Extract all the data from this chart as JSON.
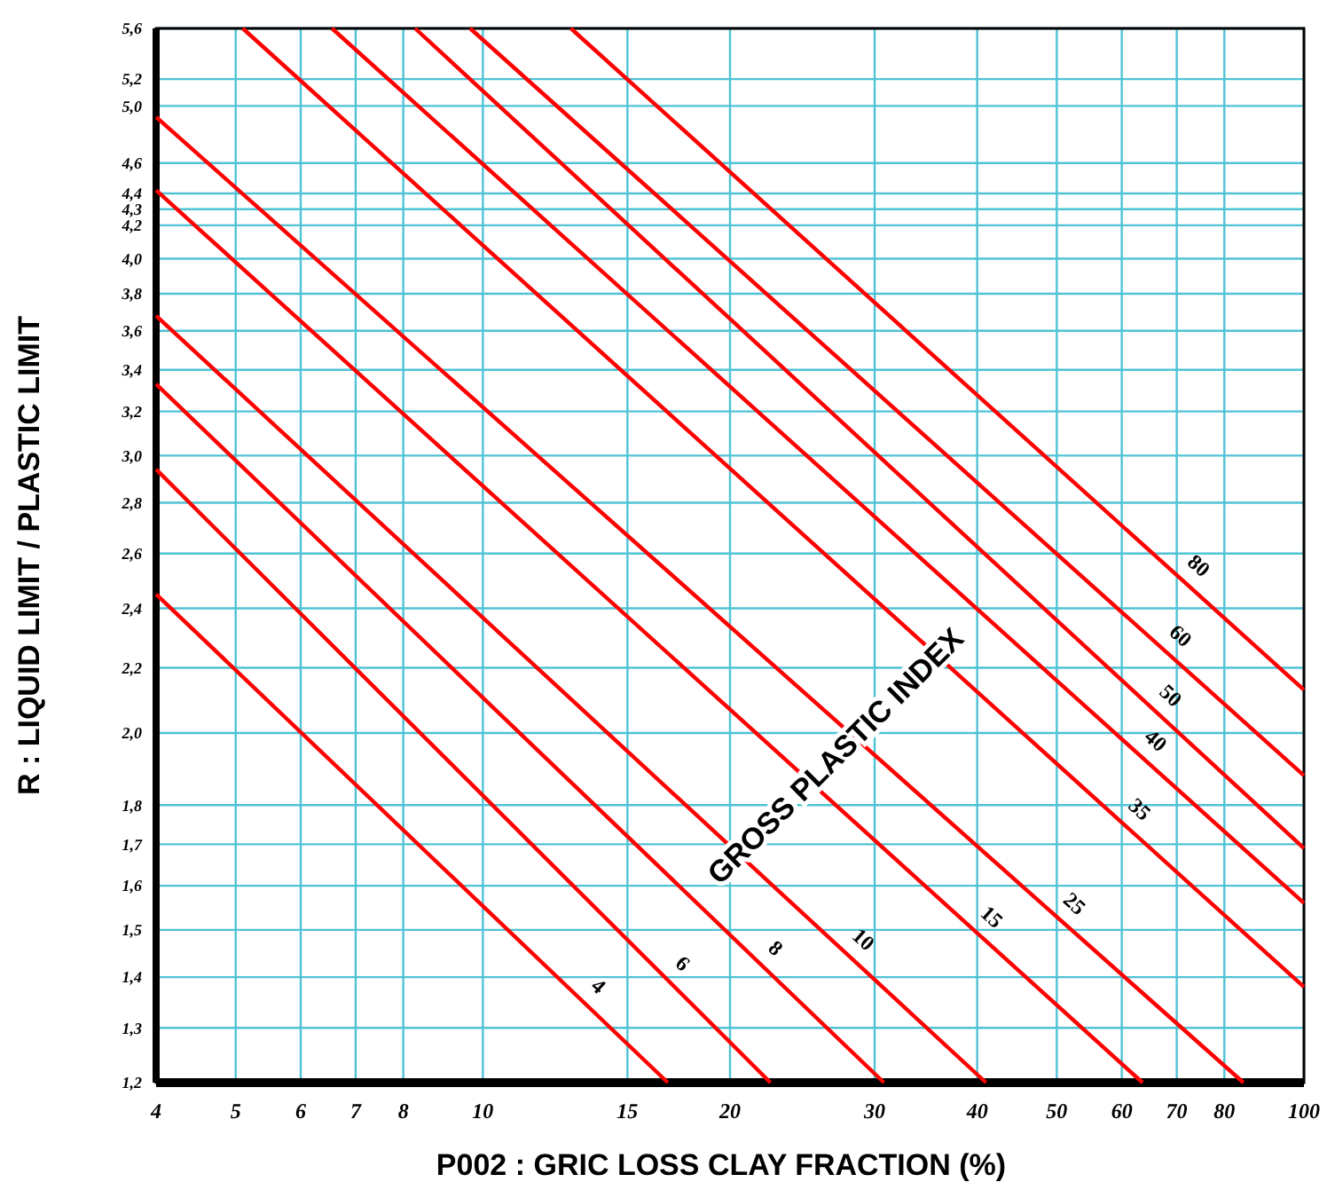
{
  "chart_data": {
    "type": "line",
    "xlabel": "P002 : GRIC LOSS CLAY FRACTION  (%)",
    "ylabel": "R : LIQUID LIMIT / PLASTIC LIMIT",
    "log": "xy",
    "grid": true,
    "marker": "none",
    "line_style": "solid",
    "xlim": [
      4,
      100
    ],
    "xticks": [
      4,
      5,
      6,
      7,
      8,
      10,
      15,
      20,
      30,
      40,
      50,
      60,
      70,
      80,
      100
    ],
    "ylim": [
      1.2,
      5.6
    ],
    "yticks": [
      {
        "value": 1.2,
        "label": "1,2"
      },
      {
        "value": 1.3,
        "label": "1,3"
      },
      {
        "value": 1.4,
        "label": "1,4"
      },
      {
        "value": 1.5,
        "label": "1,5"
      },
      {
        "value": 1.6,
        "label": "1,6"
      },
      {
        "value": 1.7,
        "label": "1,7"
      },
      {
        "value": 1.8,
        "label": "1,8"
      },
      {
        "value": 2.0,
        "label": "2,0"
      },
      {
        "value": 2.2,
        "label": "2,2"
      },
      {
        "value": 2.4,
        "label": "2,4"
      },
      {
        "value": 2.6,
        "label": "2,6"
      },
      {
        "value": 2.8,
        "label": "2,8"
      },
      {
        "value": 3.0,
        "label": "3,0"
      },
      {
        "value": 3.2,
        "label": "3,2"
      },
      {
        "value": 3.4,
        "label": "3,4"
      },
      {
        "value": 3.6,
        "label": "3,6"
      },
      {
        "value": 3.8,
        "label": "3,8"
      },
      {
        "value": 4.0,
        "label": "4,0"
      },
      {
        "value": 4.2,
        "label": "4,2"
      },
      {
        "value": 4.3,
        "label": "4,3"
      },
      {
        "value": 4.4,
        "label": "4,4"
      },
      {
        "value": 4.6,
        "label": "4,6"
      },
      {
        "value": 5.0,
        "label": "5,0"
      },
      {
        "value": 5.2,
        "label": "5,2"
      },
      {
        "value": 5.6,
        "label": "5,6"
      }
    ],
    "annotations": [
      "GROSS PLASTIC INDEX"
    ],
    "series": [
      {
        "name": "4",
        "color": "#ff0000",
        "x": [
          4,
          16.8
        ],
        "values": [
          2.45,
          1.2
        ]
      },
      {
        "name": "6",
        "color": "#ff0000",
        "x": [
          4,
          22.4
        ],
        "values": [
          2.94,
          1.2
        ]
      },
      {
        "name": "8",
        "color": "#ff0000",
        "x": [
          4,
          30.8
        ],
        "values": [
          3.33,
          1.2
        ]
      },
      {
        "name": "10",
        "color": "#ff0000",
        "x": [
          4,
          41
        ],
        "values": [
          3.68,
          1.2
        ]
      },
      {
        "name": "15",
        "color": "#ff0000",
        "x": [
          4,
          63.6
        ],
        "values": [
          4.42,
          1.2
        ]
      },
      {
        "name": "25",
        "color": "#ff0000",
        "x": [
          4,
          84.4
        ],
        "values": [
          4.92,
          1.2
        ]
      },
      {
        "name": "35",
        "color": "#ff0000",
        "x": [
          5.1,
          100
        ],
        "values": [
          5.6,
          1.38
        ]
      },
      {
        "name": "40",
        "color": "#ff0000",
        "x": [
          6.55,
          100
        ],
        "values": [
          5.6,
          1.56
        ]
      },
      {
        "name": "50",
        "color": "#ff0000",
        "x": [
          8.27,
          100
        ],
        "values": [
          5.6,
          1.69
        ]
      },
      {
        "name": "60",
        "color": "#ff0000",
        "x": [
          9.65,
          100
        ],
        "values": [
          5.6,
          1.88
        ]
      },
      {
        "name": "80",
        "color": "#ff0000",
        "x": [
          12.8,
          100
        ],
        "values": [
          5.6,
          2.13
        ]
      }
    ]
  }
}
